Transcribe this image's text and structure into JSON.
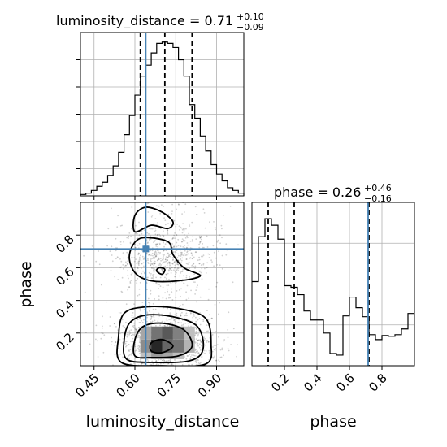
{
  "chart_data": {
    "type": "corner",
    "parameters": [
      "luminosity_distance",
      "phase"
    ],
    "truth": {
      "luminosity_distance": 0.64,
      "phase": 0.715
    },
    "titles": [
      {
        "param": "luminosity_distance",
        "median": "0.71",
        "plus": "+0.10",
        "minus": "−0.09"
      },
      {
        "param": "phase",
        "median": "0.26",
        "plus": "+0.46",
        "minus": "−0.16"
      }
    ],
    "quantiles": {
      "luminosity_distance": [
        0.62,
        0.71,
        0.81
      ],
      "phase": [
        0.1,
        0.26,
        0.72
      ]
    },
    "hist_luminosity_distance": {
      "xlim": [
        0.4,
        1.0
      ],
      "bin_edges": [
        0.4,
        0.42,
        0.44,
        0.46,
        0.48,
        0.5,
        0.52,
        0.54,
        0.56,
        0.58,
        0.6,
        0.62,
        0.64,
        0.66,
        0.68,
        0.7,
        0.72,
        0.74,
        0.76,
        0.78,
        0.8,
        0.82,
        0.84,
        0.86,
        0.88,
        0.9,
        0.92,
        0.94,
        0.96,
        0.98,
        1.0
      ],
      "counts": [
        1,
        2,
        4,
        7,
        10,
        15,
        22,
        32,
        45,
        59,
        74,
        88,
        96,
        105,
        112,
        113,
        112,
        109,
        100,
        88,
        67,
        57,
        44,
        33,
        23,
        16,
        11,
        6,
        4,
        2
      ],
      "ymax": 120,
      "xticks": [
        0.45,
        0.6,
        0.75,
        0.9
      ],
      "yticks": [
        20,
        40,
        60,
        80,
        100
      ]
    },
    "hist_phase": {
      "xlim": [
        0.0,
        1.0
      ],
      "bin_edges": [
        0.0,
        0.04,
        0.08,
        0.12,
        0.16,
        0.2,
        0.24,
        0.28,
        0.32,
        0.36,
        0.4,
        0.44,
        0.48,
        0.52,
        0.56,
        0.6,
        0.64,
        0.68,
        0.72,
        0.76,
        0.8,
        0.84,
        0.88,
        0.92,
        0.96,
        1.0
      ],
      "counts": [
        103,
        158,
        180,
        172,
        155,
        98,
        96,
        87,
        67,
        56,
        56,
        40,
        15,
        13,
        61,
        84,
        71,
        60,
        38,
        32,
        37,
        36,
        38,
        45,
        64
      ],
      "ymax": 200,
      "xticks": [
        0.2,
        0.4,
        0.6,
        0.8
      ],
      "yticks": [
        50,
        100,
        150
      ]
    },
    "scatter2d": {
      "xlim": [
        0.4,
        1.0
      ],
      "ylim": [
        0.0,
        1.0
      ],
      "xticks": [
        0.45,
        0.6,
        0.75,
        0.9
      ],
      "yticks": [
        0.2,
        0.4,
        0.6,
        0.8
      ],
      "density_cells": [
        {
          "x0": 0.62,
          "x1": 0.66,
          "y0": 0.08,
          "y1": 0.16,
          "shade": 0.45
        },
        {
          "x0": 0.66,
          "x1": 0.7,
          "y0": 0.08,
          "y1": 0.16,
          "shade": 0.85
        },
        {
          "x0": 0.7,
          "x1": 0.74,
          "y0": 0.08,
          "y1": 0.16,
          "shade": 0.6
        },
        {
          "x0": 0.74,
          "x1": 0.78,
          "y0": 0.08,
          "y1": 0.16,
          "shade": 0.55
        },
        {
          "x0": 0.78,
          "x1": 0.82,
          "y0": 0.08,
          "y1": 0.16,
          "shade": 0.3
        },
        {
          "x0": 0.62,
          "x1": 0.66,
          "y0": 0.16,
          "y1": 0.24,
          "shade": 0.35
        },
        {
          "x0": 0.66,
          "x1": 0.7,
          "y0": 0.16,
          "y1": 0.24,
          "shade": 0.55
        },
        {
          "x0": 0.7,
          "x1": 0.74,
          "y0": 0.16,
          "y1": 0.24,
          "shade": 0.65
        },
        {
          "x0": 0.74,
          "x1": 0.78,
          "y0": 0.16,
          "y1": 0.24,
          "shade": 0.5
        },
        {
          "x0": 0.78,
          "x1": 0.82,
          "y0": 0.16,
          "y1": 0.24,
          "shade": 0.25
        },
        {
          "x0": 0.62,
          "x1": 0.66,
          "y0": 0.04,
          "y1": 0.08,
          "shade": 0.25
        },
        {
          "x0": 0.66,
          "x1": 0.7,
          "y0": 0.04,
          "y1": 0.08,
          "shade": 0.4
        },
        {
          "x0": 0.7,
          "x1": 0.74,
          "y0": 0.04,
          "y1": 0.08,
          "shade": 0.35
        },
        {
          "x0": 0.74,
          "x1": 0.78,
          "y0": 0.04,
          "y1": 0.08,
          "shade": 0.25
        }
      ],
      "contours": [
        [
          [
            0.66,
            0.09
          ],
          [
            0.7,
            0.08
          ],
          [
            0.74,
            0.12
          ],
          [
            0.7,
            0.16
          ],
          [
            0.66,
            0.14
          ]
        ],
        [
          [
            0.6,
            0.06
          ],
          [
            0.66,
            0.05
          ],
          [
            0.76,
            0.06
          ],
          [
            0.81,
            0.12
          ],
          [
            0.78,
            0.22
          ],
          [
            0.7,
            0.26
          ],
          [
            0.63,
            0.24
          ],
          [
            0.6,
            0.16
          ]
        ],
        [
          [
            0.57,
            0.04
          ],
          [
            0.66,
            0.02
          ],
          [
            0.8,
            0.03
          ],
          [
            0.85,
            0.1
          ],
          [
            0.83,
            0.24
          ],
          [
            0.74,
            0.3
          ],
          [
            0.64,
            0.31
          ],
          [
            0.58,
            0.26
          ],
          [
            0.56,
            0.15
          ]
        ],
        [
          [
            0.55,
            0.02
          ],
          [
            0.7,
            0.0
          ],
          [
            0.86,
            0.01
          ],
          [
            0.88,
            0.13
          ],
          [
            0.86,
            0.29
          ],
          [
            0.76,
            0.35
          ],
          [
            0.64,
            0.36
          ],
          [
            0.56,
            0.32
          ],
          [
            0.54,
            0.18
          ]
        ],
        [
          [
            0.6,
            0.57
          ],
          [
            0.66,
            0.52
          ],
          [
            0.76,
            0.52
          ],
          [
            0.84,
            0.55
          ],
          [
            0.78,
            0.6
          ],
          [
            0.74,
            0.68
          ],
          [
            0.72,
            0.76
          ],
          [
            0.62,
            0.78
          ],
          [
            0.58,
            0.68
          ]
        ],
        [
          [
            0.6,
            0.82
          ],
          [
            0.66,
            0.86
          ],
          [
            0.72,
            0.84
          ],
          [
            0.74,
            0.88
          ],
          [
            0.7,
            0.94
          ],
          [
            0.64,
            0.97
          ],
          [
            0.6,
            0.92
          ]
        ],
        [
          [
            0.68,
            0.58
          ],
          [
            0.7,
            0.56
          ],
          [
            0.71,
            0.59
          ],
          [
            0.69,
            0.6
          ]
        ]
      ]
    },
    "xlabels": [
      "luminosity_distance",
      "phase"
    ],
    "ylabels": [
      "phase"
    ],
    "colors": {
      "truth": "#4682b4",
      "hist": "#000000",
      "grid": "#b0b0b0"
    }
  }
}
